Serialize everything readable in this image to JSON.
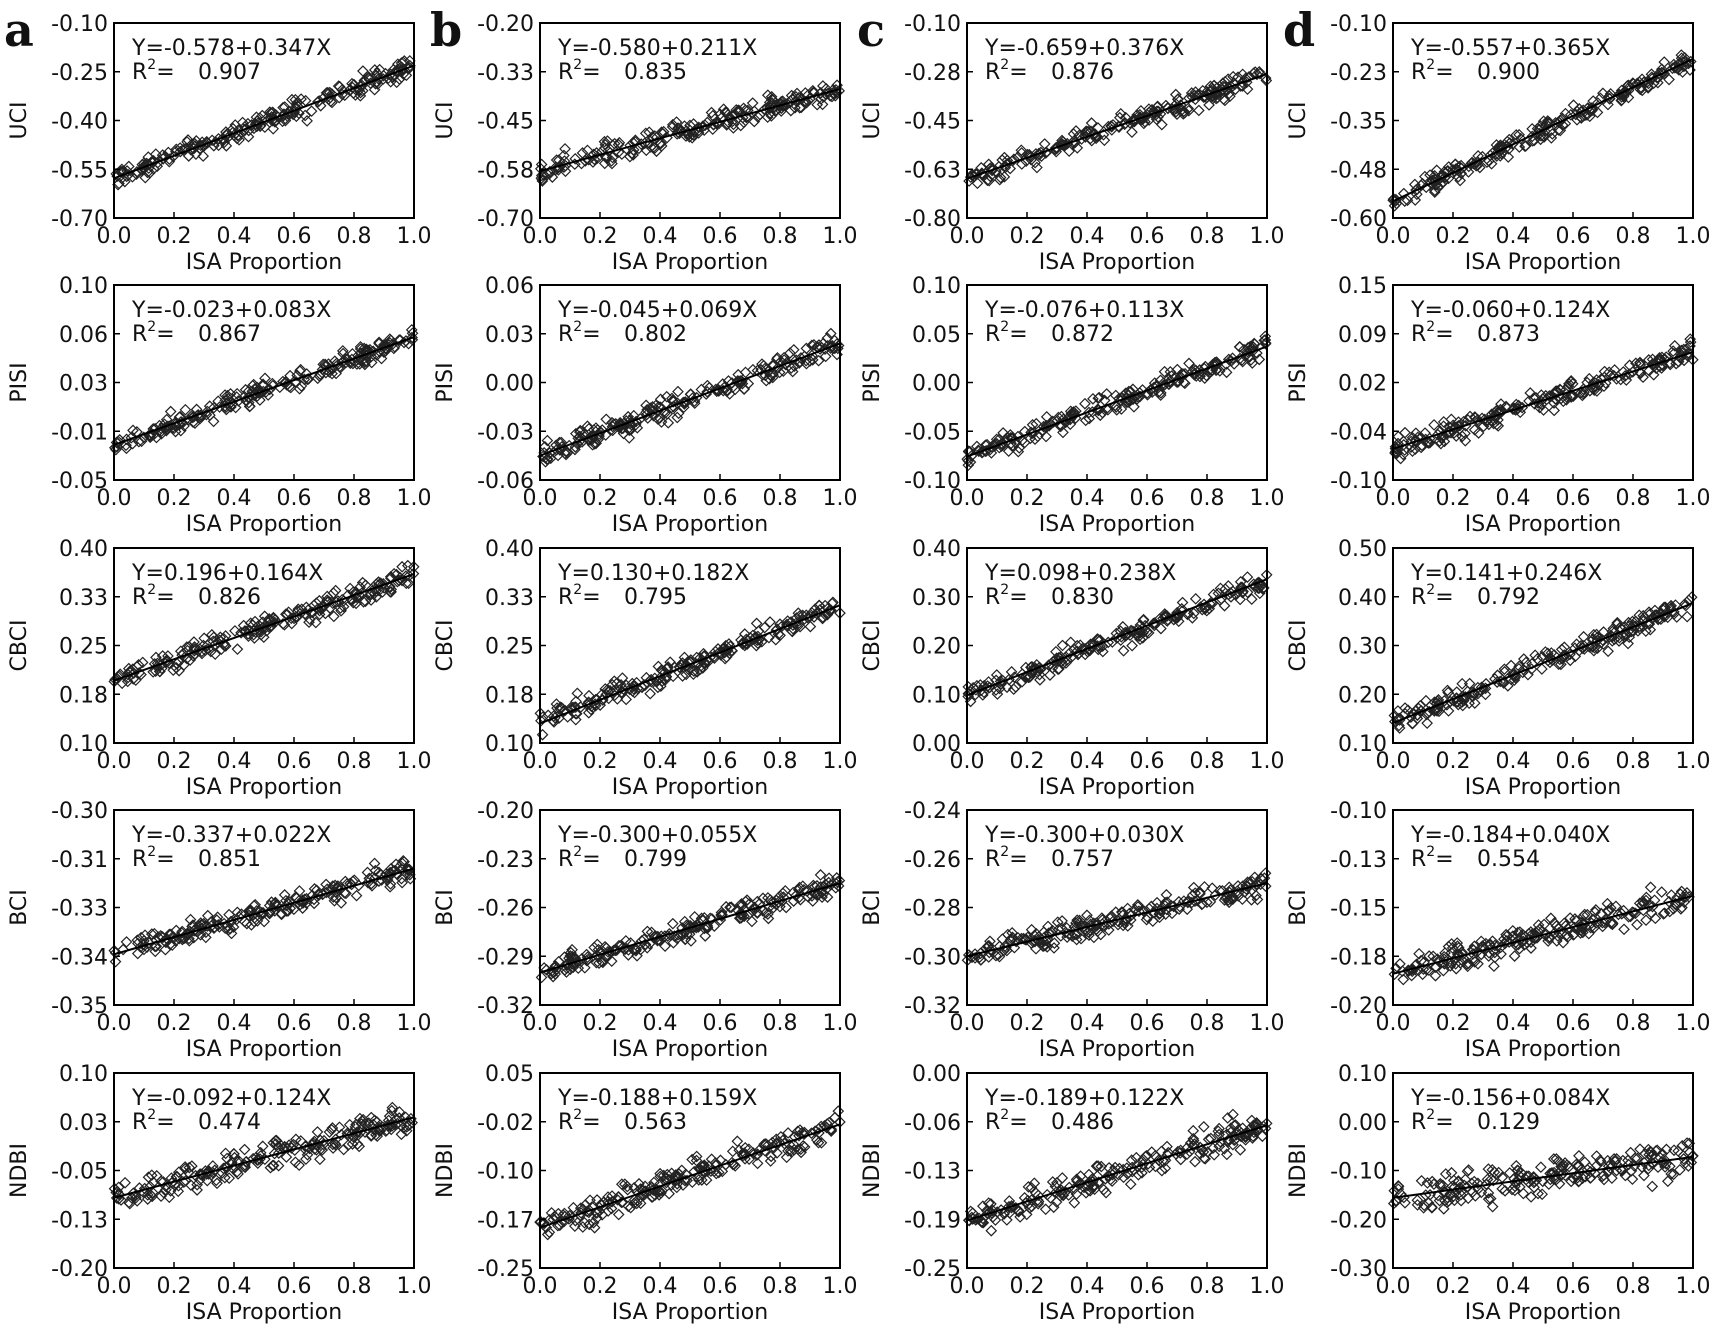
{
  "figure": {
    "columns": [
      "a",
      "b",
      "c",
      "d"
    ],
    "rows": [
      "UCI",
      "PISI",
      "CBCI",
      "BCI",
      "NDBI"
    ],
    "xlabel": "ISA Proportion",
    "x_ticks": [
      "0.0",
      "0.2",
      "0.4",
      "0.6",
      "0.8",
      "1.0"
    ]
  },
  "chart_data": [
    {
      "type": "scatter",
      "column": "a",
      "ylabel": "UCI",
      "equation": "Y=-0.578+0.347X",
      "r2_label": "R",
      "r2_sup": "2",
      "r2_eq": "=",
      "r2_value": "0.907",
      "intercept": -0.578,
      "slope": 0.347,
      "ylim": [
        -0.7,
        -0.1
      ],
      "yticks": [
        "-0.10",
        "-0.25",
        "-0.40",
        "-0.55",
        "-0.70"
      ],
      "xlabel": "ISA Proportion",
      "xlim": [
        0,
        1
      ]
    },
    {
      "type": "scatter",
      "column": "b",
      "ylabel": "UCI",
      "equation": "Y=-0.580+0.211X",
      "r2_label": "R",
      "r2_sup": "2",
      "r2_eq": "=",
      "r2_value": "0.835",
      "intercept": -0.58,
      "slope": 0.211,
      "ylim": [
        -0.7,
        -0.2
      ],
      "yticks": [
        "-0.20",
        "-0.33",
        "-0.45",
        "-0.58",
        "-0.70"
      ],
      "xlabel": "ISA Proportion",
      "xlim": [
        0,
        1
      ]
    },
    {
      "type": "scatter",
      "column": "c",
      "ylabel": "UCI",
      "equation": "Y=-0.659+0.376X",
      "r2_label": "R",
      "r2_sup": "2",
      "r2_eq": "=",
      "r2_value": "0.876",
      "intercept": -0.659,
      "slope": 0.376,
      "ylim": [
        -0.8,
        -0.1
      ],
      "yticks": [
        "-0.10",
        "-0.28",
        "-0.45",
        "-0.63",
        "-0.80"
      ],
      "xlabel": "ISA Proportion",
      "xlim": [
        0,
        1
      ]
    },
    {
      "type": "scatter",
      "column": "d",
      "ylabel": "UCI",
      "equation": "Y=-0.557+0.365X",
      "r2_label": "R",
      "r2_sup": "2",
      "r2_eq": "=",
      "r2_value": "0.900",
      "intercept": -0.557,
      "slope": 0.365,
      "ylim": [
        -0.6,
        -0.1
      ],
      "yticks": [
        "-0.10",
        "-0.23",
        "-0.35",
        "-0.48",
        "-0.60"
      ],
      "xlabel": "ISA Proportion",
      "xlim": [
        0,
        1
      ]
    },
    {
      "type": "scatter",
      "column": "a",
      "ylabel": "PISI",
      "equation": "Y=-0.023+0.083X",
      "r2_label": "R",
      "r2_sup": "2",
      "r2_eq": "=",
      "r2_value": "0.867",
      "intercept": -0.023,
      "slope": 0.083,
      "ylim": [
        -0.05,
        0.1
      ],
      "yticks": [
        "0.10",
        "0.06",
        "0.03",
        "-0.01",
        "-0.05"
      ],
      "xlabel": "ISA Proportion",
      "xlim": [
        0,
        1
      ]
    },
    {
      "type": "scatter",
      "column": "b",
      "ylabel": "PISI",
      "equation": "Y=-0.045+0.069X",
      "r2_label": "R",
      "r2_sup": "2",
      "r2_eq": "=",
      "r2_value": "0.802",
      "intercept": -0.045,
      "slope": 0.069,
      "ylim": [
        -0.06,
        0.06
      ],
      "yticks": [
        "0.06",
        "0.03",
        "0.00",
        "-0.03",
        "-0.06"
      ],
      "xlabel": "ISA Proportion",
      "xlim": [
        0,
        1
      ]
    },
    {
      "type": "scatter",
      "column": "c",
      "ylabel": "PISI",
      "equation": "Y=-0.076+0.113X",
      "r2_label": "R",
      "r2_sup": "2",
      "r2_eq": "=",
      "r2_value": "0.872",
      "intercept": -0.076,
      "slope": 0.113,
      "ylim": [
        -0.1,
        0.1
      ],
      "yticks": [
        "0.10",
        "0.05",
        "0.00",
        "-0.05",
        "-0.10"
      ],
      "xlabel": "ISA Proportion",
      "xlim": [
        0,
        1
      ]
    },
    {
      "type": "scatter",
      "column": "d",
      "ylabel": "PISI",
      "equation": "Y=-0.060+0.124X",
      "r2_label": "R",
      "r2_sup": "2",
      "r2_eq": "=",
      "r2_value": "0.873",
      "intercept": -0.06,
      "slope": 0.124,
      "ylim": [
        -0.1,
        0.15
      ],
      "yticks": [
        "0.15",
        "0.09",
        "0.02",
        "-0.04",
        "-0.10"
      ],
      "xlabel": "ISA Proportion",
      "xlim": [
        0,
        1
      ]
    },
    {
      "type": "scatter",
      "column": "a",
      "ylabel": "CBCI",
      "equation": "Y=0.196+0.164X",
      "r2_label": "R",
      "r2_sup": "2",
      "r2_eq": "=",
      "r2_value": "0.826",
      "intercept": 0.196,
      "slope": 0.164,
      "ylim": [
        0.1,
        0.4
      ],
      "yticks": [
        "0.40",
        "0.33",
        "0.25",
        "0.18",
        "0.10"
      ],
      "xlabel": "ISA Proportion",
      "xlim": [
        0,
        1
      ]
    },
    {
      "type": "scatter",
      "column": "b",
      "ylabel": "CBCI",
      "equation": "Y=0.130+0.182X",
      "r2_label": "R",
      "r2_sup": "2",
      "r2_eq": "=",
      "r2_value": "0.795",
      "intercept": 0.13,
      "slope": 0.182,
      "ylim": [
        0.1,
        0.4
      ],
      "yticks": [
        "0.40",
        "0.33",
        "0.25",
        "0.18",
        "0.10"
      ],
      "xlabel": "ISA Proportion",
      "xlim": [
        0,
        1
      ]
    },
    {
      "type": "scatter",
      "column": "c",
      "ylabel": "CBCI",
      "equation": "Y=0.098+0.238X",
      "r2_label": "R",
      "r2_sup": "2",
      "r2_eq": "=",
      "r2_value": "0.830",
      "intercept": 0.098,
      "slope": 0.238,
      "ylim": [
        0.0,
        0.4
      ],
      "yticks": [
        "0.40",
        "0.30",
        "0.20",
        "0.10",
        "0.00"
      ],
      "xlabel": "ISA Proportion",
      "xlim": [
        0,
        1
      ]
    },
    {
      "type": "scatter",
      "column": "d",
      "ylabel": "CBCI",
      "equation": "Y=0.141+0.246X",
      "r2_label": "R",
      "r2_sup": "2",
      "r2_eq": "=",
      "r2_value": "0.792",
      "intercept": 0.141,
      "slope": 0.246,
      "ylim": [
        0.1,
        0.5
      ],
      "yticks": [
        "0.50",
        "0.40",
        "0.30",
        "0.20",
        "0.10"
      ],
      "xlabel": "ISA Proportion",
      "xlim": [
        0,
        1
      ]
    },
    {
      "type": "scatter",
      "column": "a",
      "ylabel": "BCI",
      "equation": "Y=-0.337+0.022X",
      "r2_label": "R",
      "r2_sup": "2",
      "r2_eq": "=",
      "r2_value": "0.851",
      "intercept": -0.337,
      "slope": 0.022,
      "ylim": [
        -0.35,
        -0.3
      ],
      "yticks": [
        "-0.30",
        "-0.31",
        "-0.33",
        "-0.34",
        "-0.35"
      ],
      "xlabel": "ISA Proportion",
      "xlim": [
        0,
        1
      ]
    },
    {
      "type": "scatter",
      "column": "b",
      "ylabel": "BCI",
      "equation": "Y=-0.300+0.055X",
      "r2_label": "R",
      "r2_sup": "2",
      "r2_eq": "=",
      "r2_value": "0.799",
      "intercept": -0.3,
      "slope": 0.055,
      "ylim": [
        -0.32,
        -0.2
      ],
      "yticks": [
        "-0.20",
        "-0.23",
        "-0.26",
        "-0.29",
        "-0.32"
      ],
      "xlabel": "ISA Proportion",
      "xlim": [
        0,
        1
      ]
    },
    {
      "type": "scatter",
      "column": "c",
      "ylabel": "BCI",
      "equation": "Y=-0.300+0.030X",
      "r2_label": "R",
      "r2_sup": "2",
      "r2_eq": "=",
      "r2_value": "0.757",
      "intercept": -0.3,
      "slope": 0.03,
      "ylim": [
        -0.32,
        -0.24
      ],
      "yticks": [
        "-0.24",
        "-0.26",
        "-0.28",
        "-0.30",
        "-0.32"
      ],
      "xlabel": "ISA Proportion",
      "xlim": [
        0,
        1
      ]
    },
    {
      "type": "scatter",
      "column": "d",
      "ylabel": "BCI",
      "equation": "Y=-0.184+0.040X",
      "r2_label": "R",
      "r2_sup": "2",
      "r2_eq": "=",
      "r2_value": "0.554",
      "intercept": -0.184,
      "slope": 0.04,
      "ylim": [
        -0.2,
        -0.1
      ],
      "yticks": [
        "-0.10",
        "-0.13",
        "-0.15",
        "-0.18",
        "-0.20"
      ],
      "xlabel": "ISA Proportion",
      "xlim": [
        0,
        1
      ]
    },
    {
      "type": "scatter",
      "column": "a",
      "ylabel": "NDBI",
      "equation": "Y=-0.092+0.124X",
      "r2_label": "R",
      "r2_sup": "2",
      "r2_eq": "=",
      "r2_value": "0.474",
      "intercept": -0.092,
      "slope": 0.124,
      "ylim": [
        -0.2,
        0.1
      ],
      "yticks": [
        "0.10",
        "0.03",
        "-0.05",
        "-0.13",
        "-0.20"
      ],
      "xlabel": "ISA Proportion",
      "xlim": [
        0,
        1
      ]
    },
    {
      "type": "scatter",
      "column": "b",
      "ylabel": "NDBI",
      "equation": "Y=-0.188+0.159X",
      "r2_label": "R",
      "r2_sup": "2",
      "r2_eq": "=",
      "r2_value": "0.563",
      "intercept": -0.188,
      "slope": 0.159,
      "ylim": [
        -0.25,
        0.05
      ],
      "yticks": [
        "0.05",
        "-0.02",
        "-0.10",
        "-0.17",
        "-0.25"
      ],
      "xlabel": "ISA Proportion",
      "xlim": [
        0,
        1
      ]
    },
    {
      "type": "scatter",
      "column": "c",
      "ylabel": "NDBI",
      "equation": "Y=-0.189+0.122X",
      "r2_label": "R",
      "r2_sup": "2",
      "r2_eq": "=",
      "r2_value": "0.486",
      "intercept": -0.189,
      "slope": 0.122,
      "ylim": [
        -0.25,
        0.0
      ],
      "yticks": [
        "0.00",
        "-0.06",
        "-0.13",
        "-0.19",
        "-0.25"
      ],
      "xlabel": "ISA Proportion",
      "xlim": [
        0,
        1
      ]
    },
    {
      "type": "scatter",
      "column": "d",
      "ylabel": "NDBI",
      "equation": "Y=-0.156+0.084X",
      "r2_label": "R",
      "r2_sup": "2",
      "r2_eq": "=",
      "r2_value": "0.129",
      "intercept": -0.156,
      "slope": 0.084,
      "ylim": [
        -0.3,
        0.1
      ],
      "yticks": [
        "0.10",
        "0.00",
        "-0.10",
        "-0.20",
        "-0.30"
      ],
      "xlabel": "ISA Proportion",
      "xlim": [
        0,
        1
      ]
    }
  ]
}
